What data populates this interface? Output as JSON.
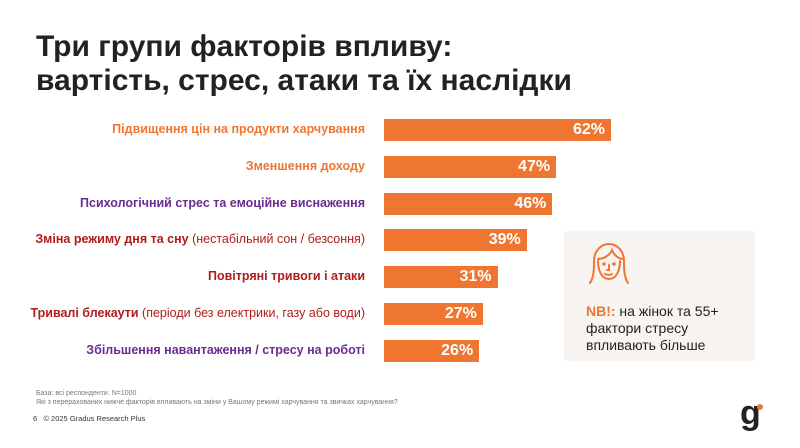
{
  "title_line1": "Три групи факторів впливу:",
  "title_line2": "вартість, стрес, атаки та їх наслідки",
  "chart_data": {
    "type": "bar",
    "orientation": "horizontal",
    "categories": [
      {
        "label": "Підвищення цін на продукти харчування",
        "sub": "",
        "color": "#ee7630"
      },
      {
        "label": "Зменшення доходу",
        "sub": "",
        "color": "#ee7630"
      },
      {
        "label": "Психологічний стрес та емоційне виснаження",
        "sub": "",
        "color": "#6a2c91"
      },
      {
        "label": "Зміна режиму дня та сну",
        "sub": " (нестабільний сон / безсоння)",
        "color": "#b01c1c"
      },
      {
        "label": "Повітряні тривоги і атаки",
        "sub": "",
        "color": "#b01c1c"
      },
      {
        "label": "Тривалі блекаути",
        "sub": " (періоди без електрики, газу або води)",
        "color": "#b01c1c"
      },
      {
        "label": "Збільшення навантаження / стресу на роботі",
        "sub": "",
        "color": "#6a2c91"
      }
    ],
    "values": [
      62,
      47,
      46,
      39,
      31,
      27,
      26
    ],
    "value_labels": [
      "62%",
      "47%",
      "46%",
      "39%",
      "31%",
      "27%",
      "26%"
    ],
    "bar_color": "#ee7630",
    "xlim": [
      0,
      100
    ]
  },
  "note": {
    "icon": "woman-face-icon",
    "nb": "NB!:",
    "line1": " на жінок та 55+",
    "line2": "фактори стресу",
    "line3": "впливають більше"
  },
  "footer": {
    "base": "База: всі респонденти. N=1000",
    "question": "Які з перерахованих нижче факторів впливають на зміни у Вашому режимі харчування та звичках харчування?",
    "page": "6",
    "copyright": "© 2025 Gradus Research Plus"
  },
  "logo": "g"
}
